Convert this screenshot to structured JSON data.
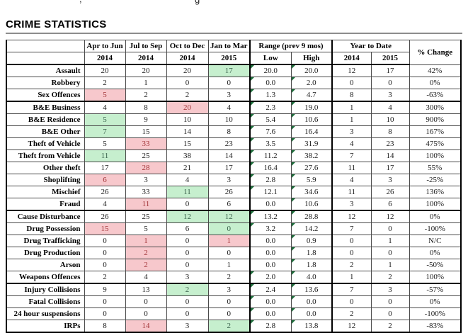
{
  "page": {
    "title": "CRIME STATISTICS",
    "top_fragments": [
      ",",
      "g"
    ]
  },
  "table": {
    "header": {
      "quarter_cols": [
        {
          "period": "Apr to Jun",
          "year": "2014"
        },
        {
          "period": "Jul to Sep",
          "year": "2014"
        },
        {
          "period": "Oct to Dec",
          "year": "2014"
        },
        {
          "period": "Jan to Mar",
          "year": "2015"
        }
      ],
      "range_group": {
        "label": "Range (prev 9 mos)",
        "sub": [
          "Low",
          "High"
        ]
      },
      "ytd_group": {
        "label": "Year to Date",
        "sub": [
          "2014",
          "2015"
        ]
      },
      "pct_label": "% Change"
    },
    "colors": {
      "good_bg": "#c6efce",
      "good_text": "#38604a",
      "bad_bg": "#f7c8cc",
      "bad_text": "#a23438",
      "triangle": "#1e6f3c"
    },
    "rows": [
      {
        "label": "Assault",
        "q": [
          {
            "v": "20"
          },
          {
            "v": "20"
          },
          {
            "v": "20"
          },
          {
            "v": "17",
            "hl": "good"
          }
        ],
        "low": {
          "v": "20.0",
          "tri": true
        },
        "high": {
          "v": "20.0",
          "tri": true
        },
        "ytd": [
          "12",
          "17"
        ],
        "pct": "42%",
        "end": false
      },
      {
        "label": "Robbery",
        "q": [
          {
            "v": "2"
          },
          {
            "v": "1"
          },
          {
            "v": "0"
          },
          {
            "v": "0"
          }
        ],
        "low": {
          "v": "0.0",
          "tri": true
        },
        "high": {
          "v": "2.0",
          "tri": true
        },
        "ytd": [
          "0",
          "0"
        ],
        "pct": "0%",
        "end": false
      },
      {
        "label": "Sex Offences",
        "q": [
          {
            "v": "5",
            "hl": "bad"
          },
          {
            "v": "2"
          },
          {
            "v": "2"
          },
          {
            "v": "3"
          }
        ],
        "low": {
          "v": "1.3",
          "tri": true
        },
        "high": {
          "v": "4.7",
          "tri": true
        },
        "ytd": [
          "8",
          "3"
        ],
        "pct": "-63%",
        "end": true
      },
      {
        "label": "B&E Business",
        "q": [
          {
            "v": "4"
          },
          {
            "v": "8"
          },
          {
            "v": "20",
            "hl": "bad"
          },
          {
            "v": "4"
          }
        ],
        "low": {
          "v": "2.3",
          "tri": true
        },
        "high": {
          "v": "19.0",
          "tri": true
        },
        "ytd": [
          "1",
          "4"
        ],
        "pct": "300%",
        "end": false
      },
      {
        "label": "B&E Residence",
        "q": [
          {
            "v": "5",
            "hl": "good"
          },
          {
            "v": "9"
          },
          {
            "v": "10"
          },
          {
            "v": "10"
          }
        ],
        "low": {
          "v": "5.4",
          "tri": true
        },
        "high": {
          "v": "10.6",
          "tri": true
        },
        "ytd": [
          "1",
          "10"
        ],
        "pct": "900%",
        "end": false
      },
      {
        "label": "B&E Other",
        "q": [
          {
            "v": "7",
            "hl": "good"
          },
          {
            "v": "15"
          },
          {
            "v": "14"
          },
          {
            "v": "8"
          }
        ],
        "low": {
          "v": "7.6",
          "tri": true
        },
        "high": {
          "v": "16.4",
          "tri": true
        },
        "ytd": [
          "3",
          "8"
        ],
        "pct": "167%",
        "end": false
      },
      {
        "label": "Theft of Vehicle",
        "q": [
          {
            "v": "5"
          },
          {
            "v": "33",
            "hl": "bad"
          },
          {
            "v": "15"
          },
          {
            "v": "23"
          }
        ],
        "low": {
          "v": "3.5",
          "tri": true
        },
        "high": {
          "v": "31.9",
          "tri": true
        },
        "ytd": [
          "4",
          "23"
        ],
        "pct": "475%",
        "end": false
      },
      {
        "label": "Theft from Vehicle",
        "q": [
          {
            "v": "11",
            "hl": "good"
          },
          {
            "v": "25"
          },
          {
            "v": "38"
          },
          {
            "v": "14"
          }
        ],
        "low": {
          "v": "11.2",
          "tri": true
        },
        "high": {
          "v": "38.2",
          "tri": true
        },
        "ytd": [
          "7",
          "14"
        ],
        "pct": "100%",
        "end": false
      },
      {
        "label": "Other theft",
        "q": [
          {
            "v": "17"
          },
          {
            "v": "28",
            "hl": "bad"
          },
          {
            "v": "21"
          },
          {
            "v": "17"
          }
        ],
        "low": {
          "v": "16.4",
          "tri": true
        },
        "high": {
          "v": "27.6",
          "tri": true
        },
        "ytd": [
          "11",
          "17"
        ],
        "pct": "55%",
        "end": false
      },
      {
        "label": "Shoplifting",
        "q": [
          {
            "v": "6",
            "hl": "bad"
          },
          {
            "v": "3"
          },
          {
            "v": "4"
          },
          {
            "v": "3"
          }
        ],
        "low": {
          "v": "2.8",
          "tri": true
        },
        "high": {
          "v": "5.9",
          "tri": true
        },
        "ytd": [
          "4",
          "3"
        ],
        "pct": "-25%",
        "end": false
      },
      {
        "label": "Mischief",
        "q": [
          {
            "v": "26"
          },
          {
            "v": "33"
          },
          {
            "v": "11",
            "hl": "good"
          },
          {
            "v": "26"
          }
        ],
        "low": {
          "v": "12.1",
          "tri": true
        },
        "high": {
          "v": "34.6",
          "tri": true
        },
        "ytd": [
          "11",
          "26"
        ],
        "pct": "136%",
        "end": false
      },
      {
        "label": "Fraud",
        "q": [
          {
            "v": "4"
          },
          {
            "v": "11",
            "hl": "bad"
          },
          {
            "v": "0"
          },
          {
            "v": "6"
          }
        ],
        "low": {
          "v": "0.0",
          "tri": false
        },
        "high": {
          "v": "10.6",
          "tri": true
        },
        "ytd": [
          "3",
          "6"
        ],
        "pct": "100%",
        "end": true
      },
      {
        "label": "Cause Disturbance",
        "q": [
          {
            "v": "26"
          },
          {
            "v": "25"
          },
          {
            "v": "12",
            "hl": "good"
          },
          {
            "v": "12",
            "hl": "good"
          }
        ],
        "low": {
          "v": "13.2",
          "tri": true
        },
        "high": {
          "v": "28.8",
          "tri": true
        },
        "ytd": [
          "12",
          "12"
        ],
        "pct": "0%",
        "end": false
      },
      {
        "label": "Drug Possession",
        "q": [
          {
            "v": "15",
            "hl": "bad"
          },
          {
            "v": "5"
          },
          {
            "v": "6"
          },
          {
            "v": "0",
            "hl": "good"
          }
        ],
        "low": {
          "v": "3.2",
          "tri": true
        },
        "high": {
          "v": "14.2",
          "tri": true
        },
        "ytd": [
          "7",
          "0"
        ],
        "pct": "-100%",
        "end": false
      },
      {
        "label": "Drug Trafficking",
        "q": [
          {
            "v": "0"
          },
          {
            "v": "1",
            "hl": "bad"
          },
          {
            "v": "0"
          },
          {
            "v": "1",
            "hl": "bad"
          }
        ],
        "low": {
          "v": "0.0",
          "tri": false
        },
        "high": {
          "v": "0.9",
          "tri": true
        },
        "ytd": [
          "0",
          "1"
        ],
        "pct": "N/C",
        "end": false
      },
      {
        "label": "Drug Production",
        "q": [
          {
            "v": "0"
          },
          {
            "v": "2",
            "hl": "bad"
          },
          {
            "v": "0"
          },
          {
            "v": "0"
          }
        ],
        "low": {
          "v": "0.0",
          "tri": false
        },
        "high": {
          "v": "1.8",
          "tri": true
        },
        "ytd": [
          "0",
          "0"
        ],
        "pct": "0%",
        "end": false
      },
      {
        "label": "Arson",
        "q": [
          {
            "v": "0"
          },
          {
            "v": "2",
            "hl": "bad"
          },
          {
            "v": "0"
          },
          {
            "v": "1"
          }
        ],
        "low": {
          "v": "0.0",
          "tri": false
        },
        "high": {
          "v": "1.8",
          "tri": true
        },
        "ytd": [
          "2",
          "1"
        ],
        "pct": "-50%",
        "end": false
      },
      {
        "label": "Weapons Offences",
        "q": [
          {
            "v": "2"
          },
          {
            "v": "4"
          },
          {
            "v": "3"
          },
          {
            "v": "2"
          }
        ],
        "low": {
          "v": "2.0",
          "tri": true
        },
        "high": {
          "v": "4.0",
          "tri": true
        },
        "ytd": [
          "1",
          "2"
        ],
        "pct": "100%",
        "end": true
      },
      {
        "label": "Injury Collisions",
        "q": [
          {
            "v": "9"
          },
          {
            "v": "13"
          },
          {
            "v": "2",
            "hl": "good"
          },
          {
            "v": "3"
          }
        ],
        "low": {
          "v": "2.4",
          "tri": true
        },
        "high": {
          "v": "13.6",
          "tri": true
        },
        "ytd": [
          "7",
          "3"
        ],
        "pct": "-57%",
        "end": false
      },
      {
        "label": "Fatal Collisions",
        "q": [
          {
            "v": "0"
          },
          {
            "v": "0"
          },
          {
            "v": "0"
          },
          {
            "v": "0"
          }
        ],
        "low": {
          "v": "0.0",
          "tri": true
        },
        "high": {
          "v": "0.0",
          "tri": true
        },
        "ytd": [
          "0",
          "0"
        ],
        "pct": "0%",
        "end": false
      },
      {
        "label": "24 hour suspensions",
        "q": [
          {
            "v": "0"
          },
          {
            "v": "0"
          },
          {
            "v": "0"
          },
          {
            "v": "0"
          }
        ],
        "low": {
          "v": "0.0",
          "tri": true
        },
        "high": {
          "v": "0.0",
          "tri": true
        },
        "ytd": [
          "2",
          "0"
        ],
        "pct": "-100%",
        "end": false
      },
      {
        "label": "IRPs",
        "q": [
          {
            "v": "8"
          },
          {
            "v": "14",
            "hl": "bad"
          },
          {
            "v": "3"
          },
          {
            "v": "2",
            "hl": "good"
          }
        ],
        "low": {
          "v": "2.8",
          "tri": true
        },
        "high": {
          "v": "13.8",
          "tri": true
        },
        "ytd": [
          "12",
          "2"
        ],
        "pct": "-83%",
        "end": true
      }
    ]
  }
}
